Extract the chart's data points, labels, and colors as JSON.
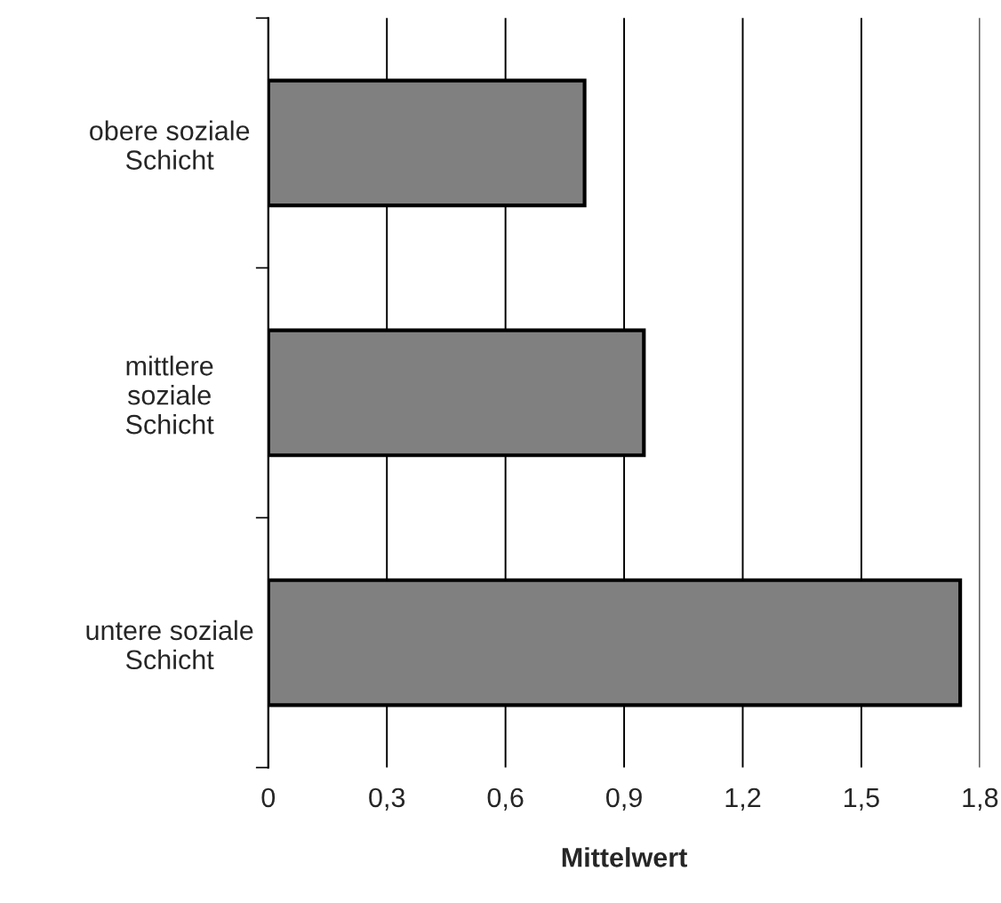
{
  "chart_data": {
    "type": "bar",
    "orientation": "horizontal",
    "xlabel": "Mittelwert",
    "categories": [
      "obere soziale\nSchicht",
      "mittlere\nsoziale\nSchicht",
      "untere soziale\nSchicht"
    ],
    "values": [
      0.8,
      0.95,
      1.75
    ],
    "color": "#808080",
    "xlim": [
      0,
      1.8
    ],
    "xticks": [
      0,
      {
        "value": 0.3,
        "label": "0,3"
      },
      {
        "value": 0.6,
        "label": "0,6"
      },
      {
        "value": 0.9,
        "label": "0,9"
      },
      {
        "value": 1.2,
        "label": "1,2"
      },
      {
        "value": 1.5,
        "label": "1,5"
      },
      {
        "value": 1.8,
        "label": "1,8"
      }
    ],
    "grid": "x",
    "legend": false
  }
}
